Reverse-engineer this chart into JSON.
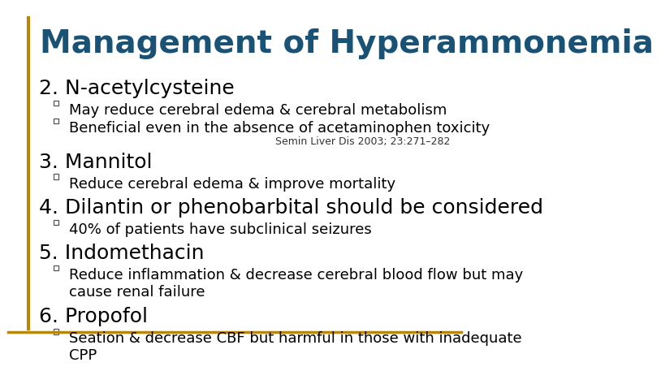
{
  "title": "Management of Hyperammonemia",
  "title_color": "#1a5276",
  "title_fontsize": 28,
  "background_color": "#ffffff",
  "border_left_color": "#b8860b",
  "border_bottom_color": "#b8860b",
  "heading_fontsize": 18,
  "bullet_fontsize": 13,
  "heading_color": "#000000",
  "bullet_color": "#000000",
  "citation_fontsize": 9,
  "citation_color": "#333333",
  "square_bullet_color": "#555555",
  "sections": [
    {
      "heading": "2. N-acetylcysteine",
      "bullets": [
        "May reduce cerebral edema & cerebral metabolism",
        "Beneficial even in the absence of acetaminophen toxicity"
      ],
      "citation": "Semin Liver Dis 2003; 23:271–282"
    },
    {
      "heading": "3. Mannitol",
      "bullets": [
        "Reduce cerebral edema & improve mortality"
      ],
      "citation": null
    },
    {
      "heading": "4. Dilantin or phenobarbital should be considered",
      "bullets": [
        "40% of patients have subclinical seizures"
      ],
      "citation": null
    },
    {
      "heading": "5. Indomethacin",
      "bullets": [
        "Reduce inflammation & decrease cerebral blood flow but may\ncause renal failure"
      ],
      "citation": null
    },
    {
      "heading": "6. Propofol",
      "bullets": [
        "Seation & decrease CBF but harmful in those with inadequate\nCPP"
      ],
      "citation": null
    }
  ]
}
